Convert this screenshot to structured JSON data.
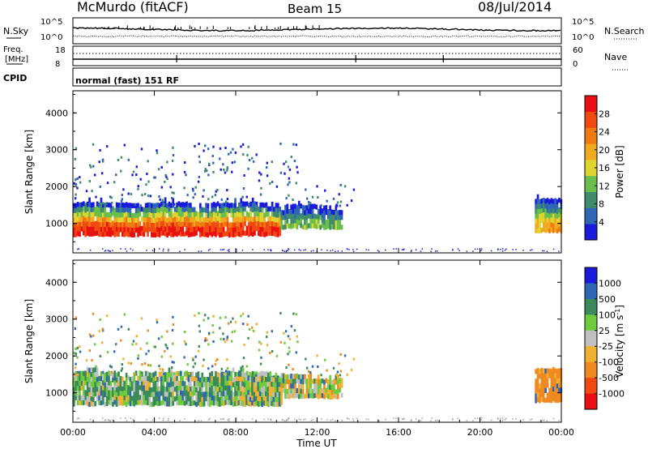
{
  "header": {
    "station": "McMurdo (fitACF)",
    "beam": "Beam 15",
    "date": "08/Jul/2014"
  },
  "top_panel": {
    "left_label": "N.Sky",
    "right_label": "N.Search",
    "left_ticks": [
      "10^5",
      "10^0"
    ],
    "right_ticks": [
      "10^5",
      "10^0"
    ]
  },
  "freq_panel": {
    "left_label_1": "Freq.",
    "left_label_2": "[MHz]",
    "right_label": "Nave",
    "left_ticks": [
      "18",
      "8"
    ],
    "right_ticks": [
      "60",
      "0"
    ]
  },
  "cpid_panel": {
    "label": "CPID",
    "text": "normal (fast) 151 RF"
  },
  "colors": {
    "power": [
      "#1a1adc",
      "#2f67b4",
      "#3f8c6c",
      "#6abf4b",
      "#e0d430",
      "#f0aa20",
      "#f07a10",
      "#f04a10",
      "#e81010"
    ],
    "velocity": [
      "#e81010",
      "#f04a10",
      "#f08a20",
      "#f0b030",
      "#c0c0c0",
      "#6ccc3c",
      "#3a8a5a",
      "#2f67b4",
      "#1a1adc"
    ],
    "ground_scatter": "#a0a0a0"
  },
  "chart_data": [
    {
      "type": "heatmap",
      "name": "power",
      "ylabel": "Slant Range [km]",
      "yticks": [
        "1000",
        "2000",
        "3000",
        "4000"
      ],
      "colorbar": {
        "label": "Power [dB]",
        "ticks": [
          "4",
          "8",
          "12",
          "16",
          "20",
          "24",
          "28"
        ],
        "range": [
          0,
          32
        ]
      },
      "bands": [
        {
          "t0": 0,
          "t1": 10.2,
          "r0": 650,
          "r1": 1500,
          "peak": 29
        },
        {
          "t0": 10.2,
          "t1": 13.2,
          "r0": 850,
          "r1": 1400,
          "peak": 12
        },
        {
          "t0": 22.7,
          "t1": 24,
          "r0": 750,
          "r1": 1650,
          "peak": 20
        }
      ]
    },
    {
      "type": "heatmap",
      "name": "velocity",
      "ylabel": "Slant Range [km]",
      "yticks": [
        "1000",
        "2000",
        "3000",
        "4000"
      ],
      "colorbar": {
        "label": "Velocity [m s^-1]",
        "ticks": [
          "1000",
          "500",
          "100",
          "25",
          "-25",
          "-100",
          "-500",
          "-1000"
        ]
      },
      "bands": [
        {
          "t0": 0,
          "t1": 10.2,
          "r0": 650,
          "r1": 1500,
          "mean": 80
        },
        {
          "t0": 8,
          "t1": 10.2,
          "r0": 650,
          "r1": 1400,
          "mean": 30
        },
        {
          "t0": 10.2,
          "t1": 13.2,
          "r0": 850,
          "r1": 1400,
          "mean": 0
        },
        {
          "t0": 22.7,
          "t1": 24,
          "r0": 750,
          "r1": 1650,
          "mean": -200
        }
      ]
    }
  ],
  "x_axis": {
    "label": "Time UT",
    "ticks": [
      "00:00",
      "04:00",
      "08:00",
      "12:00",
      "16:00",
      "20:00",
      "00:00"
    ],
    "range": [
      0,
      24
    ]
  },
  "y_range": [
    200,
    4600
  ]
}
